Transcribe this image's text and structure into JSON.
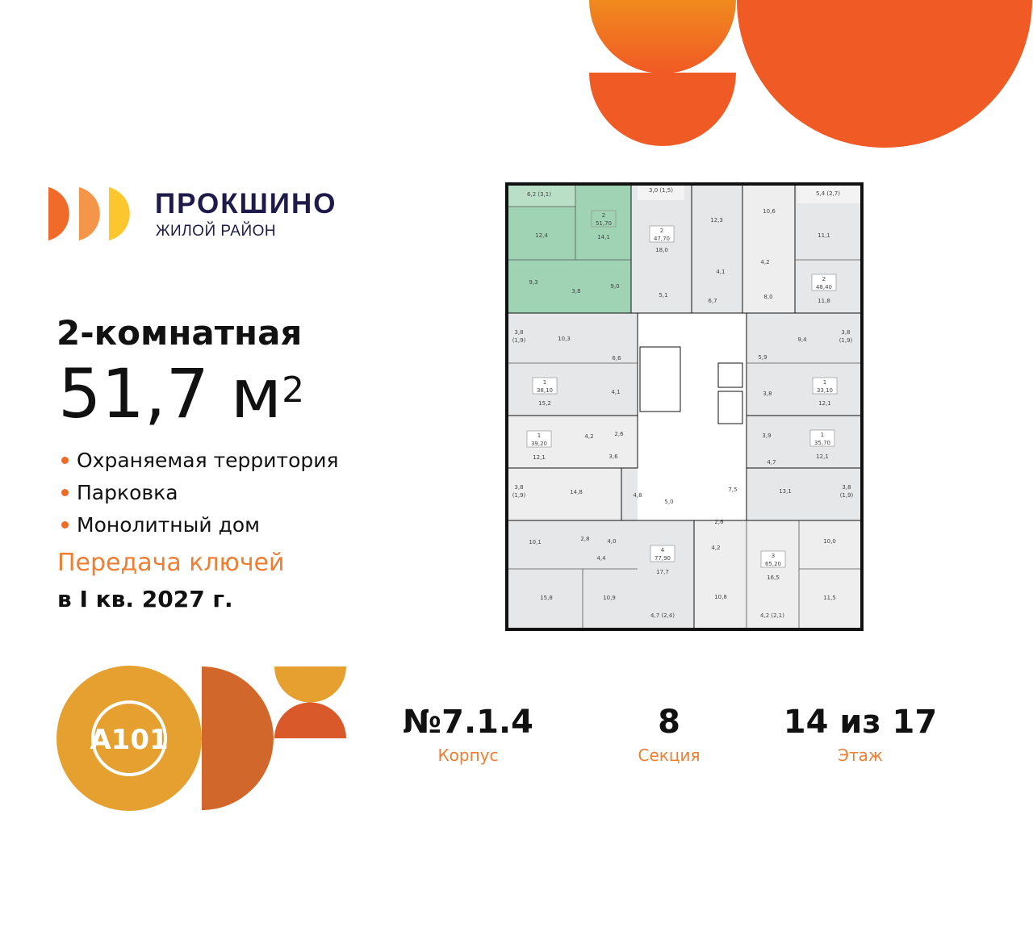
{
  "brand": {
    "name": "ПРОКШИНО",
    "subtitle": "ЖИЛОЙ РАЙОН",
    "developer_logo": "A101"
  },
  "colors": {
    "accent": "#ef6a27",
    "orange_text": "#ef7d32",
    "brand_navy": "#1e1b4b",
    "highlight_unit": "#9fd3b4",
    "logo_gold": "#e5a030",
    "logo_rust": "#d2672b"
  },
  "apartment": {
    "rooms": "2-комнатная",
    "area": "51,7 м",
    "area_sup": "2"
  },
  "features": [
    "Охраняемая территория",
    "Парковка",
    "Монолитный дом"
  ],
  "handover": {
    "label": "Передача ключей",
    "date": "в I кв. 2027 г."
  },
  "info": [
    {
      "value": "№7.1.4",
      "label": "Корпус"
    },
    {
      "value": "8",
      "label": "Секция"
    },
    {
      "value": "14 из 17",
      "label": "Этаж"
    }
  ],
  "floor_plan": {
    "highlighted_unit": {
      "rooms": "2",
      "area": "51,70"
    },
    "units": [
      {
        "rooms": "2",
        "area": "51,70"
      },
      {
        "rooms": "2",
        "area": "47,70"
      },
      {
        "rooms": "2",
        "area": "48,40"
      },
      {
        "rooms": "1",
        "area": "38,10"
      },
      {
        "rooms": "1",
        "area": "39,20"
      },
      {
        "rooms": "1",
        "area": "33,10"
      },
      {
        "rooms": "1",
        "area": "35,70"
      },
      {
        "rooms": "4",
        "area": "77,90"
      },
      {
        "rooms": "3",
        "area": "65,20"
      }
    ],
    "room_areas": [
      "6,2 (3,1)",
      "12,4",
      "14,1",
      "9,3",
      "3,8",
      "9,0",
      "3,0 (1,5)",
      "18,0",
      "5,1",
      "12,3",
      "4,1",
      "6,7",
      "10,6",
      "4,2",
      "8,0",
      "5,4 (2,7)",
      "11,1",
      "11,8",
      "3,8",
      "(1,9)",
      "10,3",
      "6,6",
      "15,2",
      "4,1",
      "12,1",
      "4,2",
      "2,6",
      "3,6",
      "9,4",
      "3,8",
      "(1,9)",
      "5,9",
      "12,1",
      "3,8",
      "12,1",
      "3,9",
      "4,7",
      "3,8",
      "(1,9)",
      "14,8",
      "4,8",
      "5,0",
      "10,1",
      "2,8",
      "4,0",
      "4,4",
      "17,7",
      "15,8",
      "10,9",
      "4,7 (2,4)",
      "7,5",
      "13,1",
      "3,8",
      "(1,9)",
      "2,6",
      "4,2",
      "10,0",
      "16,5",
      "10,8",
      "11,5",
      "4,2 (2,1)"
    ]
  }
}
